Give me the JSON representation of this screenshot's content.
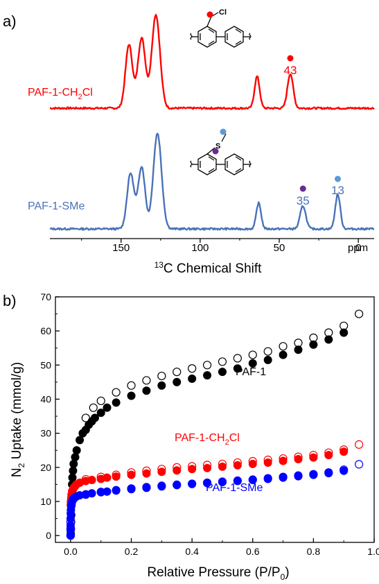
{
  "chart_data": [
    {
      "panel_label": "a)",
      "type": "line",
      "xlabel": "13C Chemical Shift",
      "xlabel_sup": "13",
      "xlabel_main": "C Chemical Shift",
      "x_unit": "ppm",
      "xlim": [
        195,
        -10
      ],
      "xticks": [
        150,
        100,
        50,
        0
      ],
      "colors": {
        "PAF-1-CH2Cl": "#ff0000",
        "PAF-1-SMe": "#4a72b8"
      },
      "series": [
        {
          "name": "PAF-1-CH2Cl",
          "name_base": "PAF-1-CH",
          "name_sub": "2",
          "name_tail": "Cl",
          "peaks": [
            {
              "ppm": 145,
              "height": 0.68,
              "width": 2.2
            },
            {
              "ppm": 137,
              "height": 0.75,
              "width": 2.4
            },
            {
              "ppm": 128,
              "height": 1.0,
              "width": 2.6
            },
            {
              "ppm": 64,
              "height": 0.34,
              "width": 1.6
            },
            {
              "ppm": 43,
              "height": 0.37,
              "width": 1.8
            }
          ],
          "annotations": [
            {
              "ppm": 43,
              "label": "43",
              "marker_color": "#ff0000"
            }
          ],
          "structure_substituent": "Cl",
          "structure_markers": [
            "#ff0000"
          ]
        },
        {
          "name": "PAF-1-SMe",
          "name_base": "PAF-1-SMe",
          "peaks": [
            {
              "ppm": 144,
              "height": 0.58,
              "width": 2.2
            },
            {
              "ppm": 137,
              "height": 0.65,
              "width": 2.2
            },
            {
              "ppm": 127,
              "height": 1.0,
              "width": 2.6
            },
            {
              "ppm": 63,
              "height": 0.27,
              "width": 1.5
            },
            {
              "ppm": 35,
              "height": 0.24,
              "width": 1.8
            },
            {
              "ppm": 13,
              "height": 0.36,
              "width": 1.6
            }
          ],
          "annotations": [
            {
              "ppm": 35,
              "label": "35",
              "marker_color": "#6a2c91"
            },
            {
              "ppm": 13,
              "label": "13",
              "marker_color": "#5b9bd5"
            }
          ],
          "structure_substituent": "S",
          "structure_markers": [
            "#5b9bd5",
            "#6a2c91"
          ]
        }
      ]
    },
    {
      "panel_label": "b)",
      "type": "scatter",
      "xlabel": "Relative Pressure (P/P0)",
      "xlabel_main": "Relative Pressure (P/P",
      "xlabel_sub": "0",
      "xlabel_tail": ")",
      "ylabel": "N2 Uptake (mmol/g)",
      "ylabel_pre": "N",
      "ylabel_sub": "2",
      "ylabel_tail": " Uptake (mmol/g)",
      "xlim": [
        -0.05,
        1.0
      ],
      "ylim": [
        -2,
        70
      ],
      "xticks": [
        "0.0",
        "0.2",
        "0.4",
        "0.6",
        "0.8",
        "1.0"
      ],
      "yticks": [
        "0",
        "10",
        "20",
        "30",
        "40",
        "50",
        "60",
        "70"
      ],
      "series": [
        {
          "name": "PAF-1",
          "color": "#000000",
          "adsorption": {
            "x": [
              0.0005,
              0.001,
              0.0015,
              0.002,
              0.003,
              0.004,
              0.005,
              0.006,
              0.008,
              0.01,
              0.015,
              0.02,
              0.03,
              0.04,
              0.05,
              0.06,
              0.07,
              0.08,
              0.1,
              0.12,
              0.15,
              0.2,
              0.25,
              0.3,
              0.35,
              0.4,
              0.45,
              0.5,
              0.55,
              0.6,
              0.65,
              0.7,
              0.75,
              0.8,
              0.85,
              0.9
            ],
            "y": [
              0.5,
              2,
              4,
              6,
              9,
              12,
              15,
              17,
              19,
              21,
              23,
              25,
              28,
              30,
              31,
              32.5,
              33.5,
              34.5,
              36,
              37.5,
              39,
              41,
              42.5,
              44,
              45,
              46,
              47,
              48,
              49,
              50.5,
              51.5,
              53,
              54.5,
              56,
              57.5,
              59.5
            ]
          },
          "desorption": {
            "x": [
              0.05,
              0.075,
              0.1,
              0.15,
              0.2,
              0.25,
              0.3,
              0.35,
              0.4,
              0.45,
              0.5,
              0.55,
              0.6,
              0.65,
              0.7,
              0.75,
              0.8,
              0.85,
              0.9,
              0.95
            ],
            "y": [
              34.5,
              37.5,
              39.5,
              42,
              44,
              45.5,
              46.8,
              48,
              49,
              50,
              51,
              52,
              53,
              54,
              55.5,
              56.5,
              58,
              59.5,
              61.5,
              65
            ]
          }
        },
        {
          "name": "PAF-1-CH2Cl",
          "name_base": "PAF-1-CH",
          "name_sub": "2",
          "name_tail": "Cl",
          "color": "#ff0000",
          "adsorption": {
            "x": [
              0.0005,
              0.001,
              0.002,
              0.003,
              0.005,
              0.008,
              0.01,
              0.015,
              0.02,
              0.03,
              0.05,
              0.07,
              0.1,
              0.12,
              0.15,
              0.2,
              0.25,
              0.3,
              0.35,
              0.4,
              0.45,
              0.5,
              0.55,
              0.6,
              0.65,
              0.7,
              0.75,
              0.8,
              0.85,
              0.9
            ],
            "y": [
              9,
              10,
              11,
              12,
              13,
              13.5,
              14,
              14.5,
              15,
              15.5,
              16,
              16.3,
              16.6,
              17,
              17.3,
              17.8,
              18.2,
              18.7,
              19.1,
              19.5,
              19.8,
              20.2,
              20.6,
              21,
              21.4,
              21.9,
              22.4,
              22.9,
              23.6,
              24.6
            ]
          },
          "desorption": {
            "x": [
              0.05,
              0.1,
              0.15,
              0.2,
              0.25,
              0.3,
              0.35,
              0.4,
              0.45,
              0.5,
              0.55,
              0.6,
              0.65,
              0.7,
              0.75,
              0.8,
              0.85,
              0.9,
              0.95
            ],
            "y": [
              16.5,
              17.2,
              17.8,
              18.5,
              19,
              19.5,
              20,
              20.3,
              20.7,
              21,
              21.4,
              21.8,
              22.2,
              22.6,
              23.1,
              23.6,
              24.3,
              25.2,
              26.7
            ]
          }
        },
        {
          "name": "PAF-1-SMe",
          "color": "#0000ff",
          "adsorption": {
            "x": [
              0.0,
              0.0,
              0.0,
              0.0,
              0.0005,
              0.001,
              0.002,
              0.003,
              0.005,
              0.008,
              0.01,
              0.015,
              0.02,
              0.03,
              0.05,
              0.07,
              0.1,
              0.12,
              0.15,
              0.2,
              0.25,
              0.3,
              0.35,
              0.4,
              0.45,
              0.5,
              0.55,
              0.6,
              0.65,
              0.7,
              0.75,
              0.8,
              0.85,
              0.9
            ],
            "y": [
              0,
              1.5,
              3,
              5,
              6.5,
              7.5,
              8.5,
              9.3,
              10,
              10.5,
              10.9,
              11.2,
              11.5,
              11.8,
              12.1,
              12.4,
              12.7,
              12.9,
              13.2,
              13.6,
              14,
              14.4,
              14.8,
              15.1,
              15.4,
              15.7,
              16,
              16.3,
              16.6,
              17,
              17.4,
              17.8,
              18.3,
              19
            ]
          },
          "desorption": {
            "x": [
              0.0,
              0.0,
              0.0,
              0.05,
              0.1,
              0.15,
              0.2,
              0.25,
              0.3,
              0.35,
              0.4,
              0.45,
              0.5,
              0.55,
              0.6,
              0.65,
              0.7,
              0.75,
              0.8,
              0.85,
              0.9,
              0.95
            ],
            "y": [
              0,
              2,
              4,
              12,
              12.8,
              13.3,
              13.8,
              14.2,
              14.6,
              14.9,
              15.2,
              15.5,
              15.8,
              16.1,
              16.4,
              16.8,
              17.2,
              17.6,
              18,
              18.5,
              19.3,
              20.9
            ]
          }
        }
      ]
    }
  ]
}
